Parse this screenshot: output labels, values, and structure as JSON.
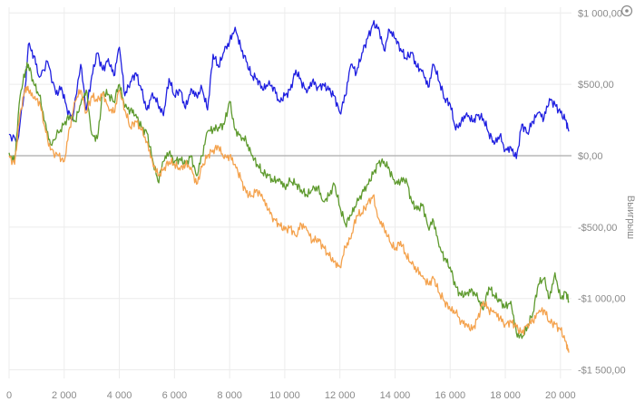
{
  "chart_data": {
    "type": "line",
    "title": "",
    "xlabel": "",
    "ylabel": "Выигрыш",
    "x_ticks": [
      0,
      2000,
      4000,
      6000,
      8000,
      10000,
      12000,
      14000,
      16000,
      18000,
      20000
    ],
    "x_tick_labels": [
      "0",
      "2 000",
      "4 000",
      "6 000",
      "8 000",
      "10 000",
      "12 000",
      "14 000",
      "16 000",
      "18 000",
      "20 000"
    ],
    "y_ticks": [
      -1500,
      -1000,
      -500,
      0,
      500,
      1000
    ],
    "y_tick_labels": [
      "-$1 500,00",
      "-$1 000,00",
      "-$500,00",
      "$0,00",
      "$500,00",
      "$1 000,00"
    ],
    "xlim": [
      0,
      20400
    ],
    "ylim": [
      -1560,
      1040
    ],
    "grid": true,
    "legend": "none",
    "series": [
      {
        "color": "#1f1fe0",
        "x": [
          0,
          300,
          600,
          700,
          900,
          1100,
          1400,
          1700,
          1900,
          2100,
          2300,
          2600,
          2800,
          3000,
          3200,
          3400,
          3600,
          3800,
          4000,
          4200,
          4400,
          4600,
          4800,
          5000,
          5200,
          5400,
          5600,
          5800,
          6000,
          6200,
          6400,
          6600,
          6800,
          7000,
          7200,
          7400,
          7600,
          7800,
          8000,
          8200,
          8400,
          8600,
          8800,
          9000,
          9200,
          9400,
          9600,
          9800,
          10000,
          10200,
          10400,
          10600,
          10800,
          11000,
          11200,
          11400,
          11600,
          11800,
          12000,
          12200,
          12400,
          12600,
          12800,
          13000,
          13200,
          13400,
          13600,
          13800,
          14000,
          14200,
          14400,
          14600,
          14800,
          15000,
          15200,
          15400,
          15600,
          15800,
          16000,
          16200,
          16400,
          16600,
          16800,
          17000,
          17200,
          17400,
          17600,
          17800,
          18000,
          18200,
          18400,
          18600,
          18800,
          19000,
          19200,
          19400,
          19600,
          19800,
          20000,
          20200,
          20300
        ],
        "y": [
          150,
          100,
          500,
          780,
          700,
          550,
          660,
          430,
          480,
          330,
          250,
          640,
          320,
          560,
          720,
          600,
          680,
          560,
          760,
          420,
          520,
          580,
          460,
          320,
          440,
          360,
          280,
          540,
          420,
          460,
          330,
          470,
          420,
          470,
          320,
          710,
          620,
          730,
          800,
          900,
          760,
          660,
          560,
          540,
          460,
          500,
          480,
          380,
          420,
          460,
          600,
          520,
          440,
          520,
          480,
          500,
          460,
          420,
          300,
          420,
          640,
          580,
          720,
          820,
          920,
          900,
          740,
          880,
          820,
          750,
          680,
          720,
          620,
          600,
          480,
          640,
          520,
          400,
          360,
          180,
          240,
          300,
          240,
          280,
          260,
          160,
          80,
          140,
          40,
          60,
          -20,
          220,
          160,
          240,
          300,
          260,
          400,
          360,
          300,
          250,
          170
        ]
      },
      {
        "color": "#5e9a2e",
        "x": [
          0,
          200,
          400,
          600,
          700,
          900,
          1100,
          1300,
          1500,
          1800,
          2000,
          2200,
          2400,
          2600,
          2800,
          3000,
          3200,
          3400,
          3600,
          3800,
          4000,
          4200,
          4400,
          4600,
          4800,
          5000,
          5200,
          5400,
          5600,
          5800,
          6000,
          6200,
          6400,
          6600,
          6800,
          7000,
          7200,
          7400,
          7600,
          7800,
          8000,
          8200,
          8400,
          8600,
          8800,
          9000,
          9200,
          9400,
          9600,
          9800,
          10000,
          10200,
          10400,
          10600,
          10800,
          11000,
          11200,
          11400,
          11600,
          11800,
          12000,
          12200,
          12400,
          12600,
          12800,
          13000,
          13200,
          13400,
          13600,
          13800,
          14000,
          14200,
          14400,
          14600,
          14800,
          15000,
          15200,
          15400,
          15600,
          15800,
          16000,
          16200,
          16400,
          16600,
          16800,
          17000,
          17200,
          17400,
          17600,
          17800,
          18000,
          18200,
          18400,
          18600,
          18800,
          19000,
          19200,
          19400,
          19600,
          19800,
          20000,
          20200,
          20300
        ],
        "y": [
          20,
          -40,
          420,
          600,
          640,
          500,
          420,
          240,
          80,
          160,
          220,
          280,
          240,
          360,
          460,
          150,
          120,
          440,
          430,
          380,
          500,
          340,
          320,
          290,
          200,
          160,
          -20,
          -180,
          -40,
          20,
          -40,
          -20,
          -60,
          0,
          -140,
          0,
          170,
          180,
          200,
          220,
          380,
          180,
          140,
          100,
          0,
          -60,
          -120,
          -140,
          -180,
          -160,
          -220,
          -180,
          -200,
          -240,
          -280,
          -240,
          -220,
          -320,
          -280,
          -200,
          -360,
          -480,
          -420,
          -340,
          -260,
          -200,
          -130,
          -50,
          -40,
          -100,
          -200,
          -180,
          -160,
          -320,
          -380,
          -340,
          -500,
          -460,
          -640,
          -720,
          -780,
          -920,
          -980,
          -960,
          -940,
          -1000,
          -1080,
          -920,
          -980,
          -1020,
          -1060,
          -1020,
          -1240,
          -1280,
          -1200,
          -1100,
          -900,
          -860,
          -1000,
          -820,
          -1000,
          -960,
          -1020
        ]
      },
      {
        "color": "#f4a24d",
        "x": [
          0,
          200,
          400,
          600,
          700,
          900,
          1100,
          1300,
          1500,
          1800,
          2000,
          2200,
          2400,
          2600,
          2800,
          3000,
          3200,
          3400,
          3600,
          3800,
          4000,
          4200,
          4400,
          4600,
          4800,
          5000,
          5200,
          5400,
          5600,
          5800,
          6000,
          6200,
          6400,
          6600,
          6800,
          7000,
          7200,
          7400,
          7600,
          7800,
          8000,
          8200,
          8400,
          8600,
          8800,
          9000,
          9200,
          9400,
          9600,
          9800,
          10000,
          10200,
          10400,
          10600,
          10800,
          11000,
          11200,
          11400,
          11600,
          11800,
          12000,
          12200,
          12400,
          12600,
          12800,
          13000,
          13200,
          13400,
          13600,
          13800,
          14000,
          14200,
          14400,
          14600,
          14800,
          15000,
          15200,
          15400,
          15600,
          15800,
          16000,
          16200,
          16400,
          16600,
          16800,
          17000,
          17200,
          17400,
          17600,
          17800,
          18000,
          18200,
          18400,
          18600,
          18800,
          19000,
          19200,
          19400,
          19600,
          19800,
          20000,
          20200,
          20300
        ],
        "y": [
          0,
          -60,
          300,
          480,
          460,
          400,
          380,
          200,
          40,
          0,
          -40,
          200,
          380,
          460,
          300,
          420,
          380,
          440,
          340,
          300,
          460,
          320,
          200,
          240,
          180,
          100,
          -40,
          -140,
          -100,
          -40,
          -60,
          -100,
          -60,
          -80,
          -200,
          -80,
          0,
          40,
          60,
          -20,
          0,
          -60,
          -160,
          -260,
          -280,
          -240,
          -300,
          -380,
          -440,
          -480,
          -520,
          -500,
          -560,
          -480,
          -520,
          -600,
          -580,
          -640,
          -700,
          -740,
          -780,
          -640,
          -580,
          -420,
          -400,
          -340,
          -280,
          -440,
          -500,
          -600,
          -660,
          -600,
          -700,
          -760,
          -800,
          -840,
          -900,
          -860,
          -960,
          -1020,
          -1080,
          -1100,
          -1160,
          -1180,
          -1220,
          -1140,
          -1020,
          -1080,
          -1100,
          -1140,
          -1180,
          -1160,
          -1200,
          -1240,
          -1180,
          -1160,
          -1100,
          -1080,
          -1160,
          -1180,
          -1220,
          -1300,
          -1380
        ]
      }
    ]
  }
}
